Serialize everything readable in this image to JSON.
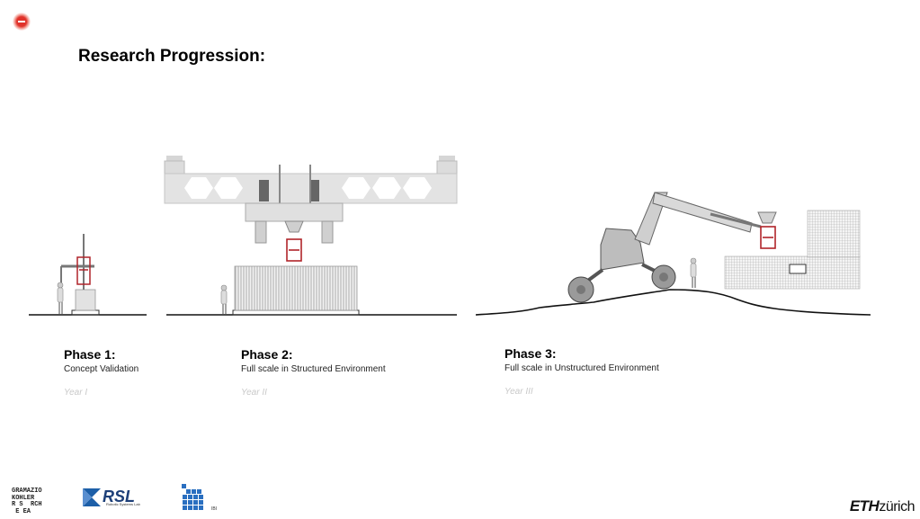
{
  "title": "Research Progression:",
  "phases": [
    {
      "title": "Phase 1:",
      "subtitle": "Concept Validation",
      "year": "Year I"
    },
    {
      "title": "Phase 2:",
      "subtitle": "Full scale in Structured Environment",
      "year": "Year II"
    },
    {
      "title": "Phase 3:",
      "subtitle": "Full scale in Unstructured Environment",
      "year": "Year III"
    }
  ],
  "logos": {
    "gkr": "GRAMAZIO\nKOHLER\nR S  RCH\n E EA",
    "rsl_text": "RSL",
    "rsl_subtitle": "Robotic Systems Lab",
    "ibi": "IBI",
    "eth": "ETH",
    "eth_suffix": "zürich"
  },
  "colors": {
    "record": "#e0322a",
    "year": "#c9c9c9",
    "accent_red": "#b0242a"
  }
}
